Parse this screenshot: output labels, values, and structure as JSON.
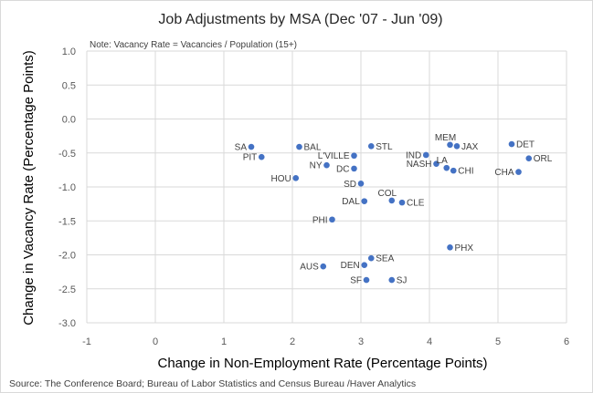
{
  "chart_data": {
    "type": "scatter",
    "title": "Job Adjustments by MSA (Dec '07 - Jun '09)",
    "note": "Note:  Vacancy Rate = Vacancies / Population (15+)",
    "xlabel": "Change in Non-Employment Rate (Percentage Points)",
    "ylabel": "Change in Vacancy Rate (Percentage Points)",
    "xlim": [
      -1,
      6
    ],
    "ylim": [
      -3.0,
      1.0
    ],
    "x_ticks": [
      -1,
      0,
      1,
      2,
      3,
      4,
      5,
      6
    ],
    "y_ticks": [
      1.0,
      0.5,
      0.0,
      -0.5,
      -1.0,
      -1.5,
      -2.0,
      -2.5,
      -3.0
    ],
    "x_tick_labels": [
      "-1",
      "0",
      "1",
      "2",
      "3",
      "4",
      "5",
      "6"
    ],
    "y_tick_labels": [
      "1.0",
      "0.5",
      "0.0",
      "-0.5",
      "-1.0",
      "-1.5",
      "-2.0",
      "-2.5",
      "-3.0"
    ],
    "gridlines": true,
    "marker_color": "#4472c4",
    "points": [
      {
        "label": "SA",
        "x": 1.4,
        "y": -0.41,
        "side": "left"
      },
      {
        "label": "PIT",
        "x": 1.55,
        "y": -0.56,
        "side": "left"
      },
      {
        "label": "BAL",
        "x": 2.1,
        "y": -0.41,
        "side": "right"
      },
      {
        "label": "HOU",
        "x": 2.05,
        "y": -0.87,
        "side": "left"
      },
      {
        "label": "NY",
        "x": 2.5,
        "y": -0.68,
        "side": "left"
      },
      {
        "label": "L'VILLE",
        "x": 2.9,
        "y": -0.54,
        "side": "left"
      },
      {
        "label": "DC",
        "x": 2.9,
        "y": -0.73,
        "side": "left"
      },
      {
        "label": "STL",
        "x": 3.15,
        "y": -0.4,
        "side": "right"
      },
      {
        "label": "SD",
        "x": 3.0,
        "y": -0.95,
        "side": "left"
      },
      {
        "label": "DAL",
        "x": 3.05,
        "y": -1.21,
        "side": "left"
      },
      {
        "label": "COL",
        "x": 3.45,
        "y": -1.2,
        "side": "above"
      },
      {
        "label": "CLE",
        "x": 3.6,
        "y": -1.23,
        "side": "right"
      },
      {
        "label": "PHI",
        "x": 2.58,
        "y": -1.48,
        "side": "left"
      },
      {
        "label": "IND",
        "x": 3.95,
        "y": -0.53,
        "side": "left"
      },
      {
        "label": "NASH",
        "x": 4.1,
        "y": -0.66,
        "side": "left"
      },
      {
        "label": "MEM",
        "x": 4.3,
        "y": -0.38,
        "side": "above"
      },
      {
        "label": "JAX",
        "x": 4.4,
        "y": -0.4,
        "side": "right"
      },
      {
        "label": "LA",
        "x": 4.25,
        "y": -0.72,
        "side": "above"
      },
      {
        "label": "CHI",
        "x": 4.35,
        "y": -0.76,
        "side": "right"
      },
      {
        "label": "DET",
        "x": 5.2,
        "y": -0.37,
        "side": "right"
      },
      {
        "label": "ORL",
        "x": 5.45,
        "y": -0.58,
        "side": "right"
      },
      {
        "label": "CHA",
        "x": 5.3,
        "y": -0.78,
        "side": "left"
      },
      {
        "label": "PHX",
        "x": 4.3,
        "y": -1.89,
        "side": "right"
      },
      {
        "label": "SEA",
        "x": 3.15,
        "y": -2.05,
        "side": "right"
      },
      {
        "label": "DEN",
        "x": 3.05,
        "y": -2.15,
        "side": "left"
      },
      {
        "label": "AUS",
        "x": 2.45,
        "y": -2.17,
        "side": "left"
      },
      {
        "label": "SF",
        "x": 3.08,
        "y": -2.37,
        "side": "left"
      },
      {
        "label": "SJ",
        "x": 3.45,
        "y": -2.37,
        "side": "right"
      }
    ]
  },
  "source": "Source: The Conference Board; Bureau of Labor Statistics and Census Bureau /Haver Analytics"
}
